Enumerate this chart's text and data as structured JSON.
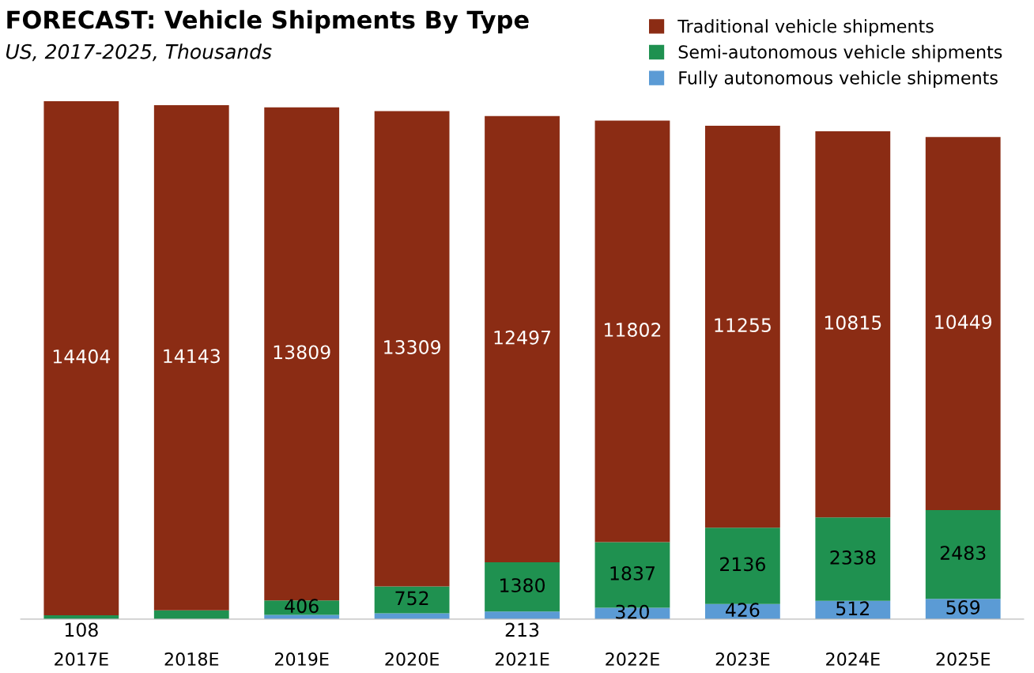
{
  "chart_data": {
    "type": "bar",
    "title": "FORECAST: Vehicle Shipments By Type",
    "subtitle": "US, 2017-2025, Thousands",
    "categories": [
      "2017E",
      "2018E",
      "2019E",
      "2020E",
      "2021E",
      "2022E",
      "2023E",
      "2024E",
      "2025E"
    ],
    "stacked": true,
    "legend": "top right",
    "grid": false,
    "series": [
      {
        "name": "Fully autonomous vehicle shipments",
        "color": "#5b9bd5",
        "values": [
          0,
          null,
          120,
          165,
          213,
          320,
          426,
          512,
          569
        ],
        "value_labels": [
          null,
          null,
          null,
          null,
          "213",
          "320",
          "426",
          "512",
          "569"
        ]
      },
      {
        "name": "Semi-autonomous vehicle shipments",
        "color": "#1f9150",
        "values": [
          108,
          250,
          406,
          752,
          1380,
          1837,
          2136,
          2338,
          2483
        ],
        "value_labels": [
          "108",
          null,
          "406",
          "752",
          "1380",
          "1837",
          "2136",
          "2338",
          "2483"
        ]
      },
      {
        "name": "Traditional vehicle shipments",
        "color": "#8b2c14",
        "values": [
          14404,
          14143,
          13809,
          13309,
          12497,
          11802,
          11255,
          10815,
          10449
        ],
        "value_labels": [
          "14404",
          "14143",
          "13809",
          "13309",
          "12497",
          "11802",
          "11255",
          "10815",
          "10449"
        ]
      }
    ]
  }
}
